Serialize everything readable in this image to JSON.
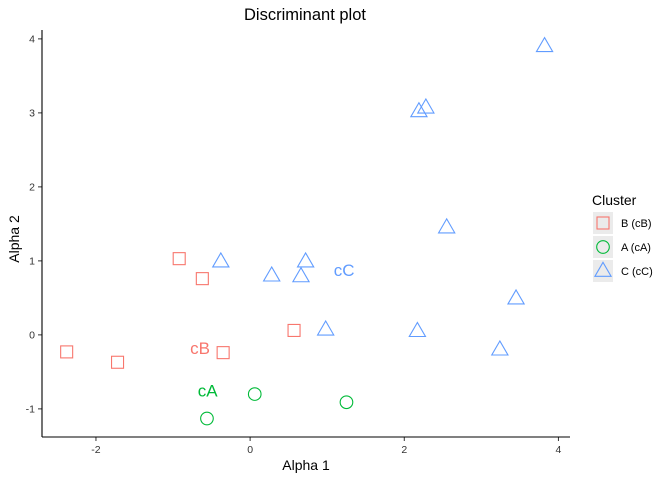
{
  "chart_data": {
    "type": "scatter",
    "title": "Discriminant plot",
    "xlabel": "Alpha 1",
    "ylabel": "Alpha 2",
    "xlim": [
      -2.7,
      4.15
    ],
    "ylim": [
      -1.38,
      4.12
    ],
    "xticks": [
      -2,
      0,
      2,
      4
    ],
    "yticks": [
      -1,
      0,
      1,
      2,
      3,
      4
    ],
    "xtick_labels": [
      "-2",
      "0",
      "2",
      "4"
    ],
    "ytick_labels": [
      "-1",
      "0",
      "1",
      "2",
      "3",
      "4"
    ],
    "grid": false,
    "legend": {
      "title": "Cluster",
      "placement": "right"
    },
    "series": [
      {
        "name": "B (cB)",
        "color": "#F8766D",
        "marker": "square",
        "points": [
          {
            "x": -2.38,
            "y": -0.23
          },
          {
            "x": -1.72,
            "y": -0.37
          },
          {
            "x": -0.92,
            "y": 1.03
          },
          {
            "x": -0.62,
            "y": 0.76
          },
          {
            "x": -0.35,
            "y": -0.24
          },
          {
            "x": 0.57,
            "y": 0.06
          }
        ]
      },
      {
        "name": "A (cA)",
        "color": "#00BA38",
        "marker": "circle",
        "points": [
          {
            "x": -0.56,
            "y": -1.13
          },
          {
            "x": 0.06,
            "y": -0.8
          },
          {
            "x": 1.25,
            "y": -0.91
          }
        ]
      },
      {
        "name": "C (cC)",
        "color": "#619CFF",
        "marker": "triangle",
        "points": [
          {
            "x": 3.82,
            "y": 3.9
          },
          {
            "x": 2.28,
            "y": 3.07
          },
          {
            "x": 2.19,
            "y": 3.02
          },
          {
            "x": 2.55,
            "y": 1.45
          },
          {
            "x": -0.38,
            "y": 0.99
          },
          {
            "x": 0.72,
            "y": 0.99
          },
          {
            "x": 0.28,
            "y": 0.8
          },
          {
            "x": 0.66,
            "y": 0.79
          },
          {
            "x": 3.45,
            "y": 0.49
          },
          {
            "x": 0.98,
            "y": 0.07
          },
          {
            "x": 2.17,
            "y": 0.05
          },
          {
            "x": 3.24,
            "y": -0.2
          }
        ]
      }
    ],
    "annotations": [
      {
        "text": "cC",
        "x": 1.22,
        "y": 0.88,
        "color": "#619CFF"
      },
      {
        "text": "cB",
        "x": -0.65,
        "y": -0.18,
        "color": "#F8766D"
      },
      {
        "text": "cA",
        "x": -0.55,
        "y": -0.75,
        "color": "#00BA38"
      }
    ]
  }
}
